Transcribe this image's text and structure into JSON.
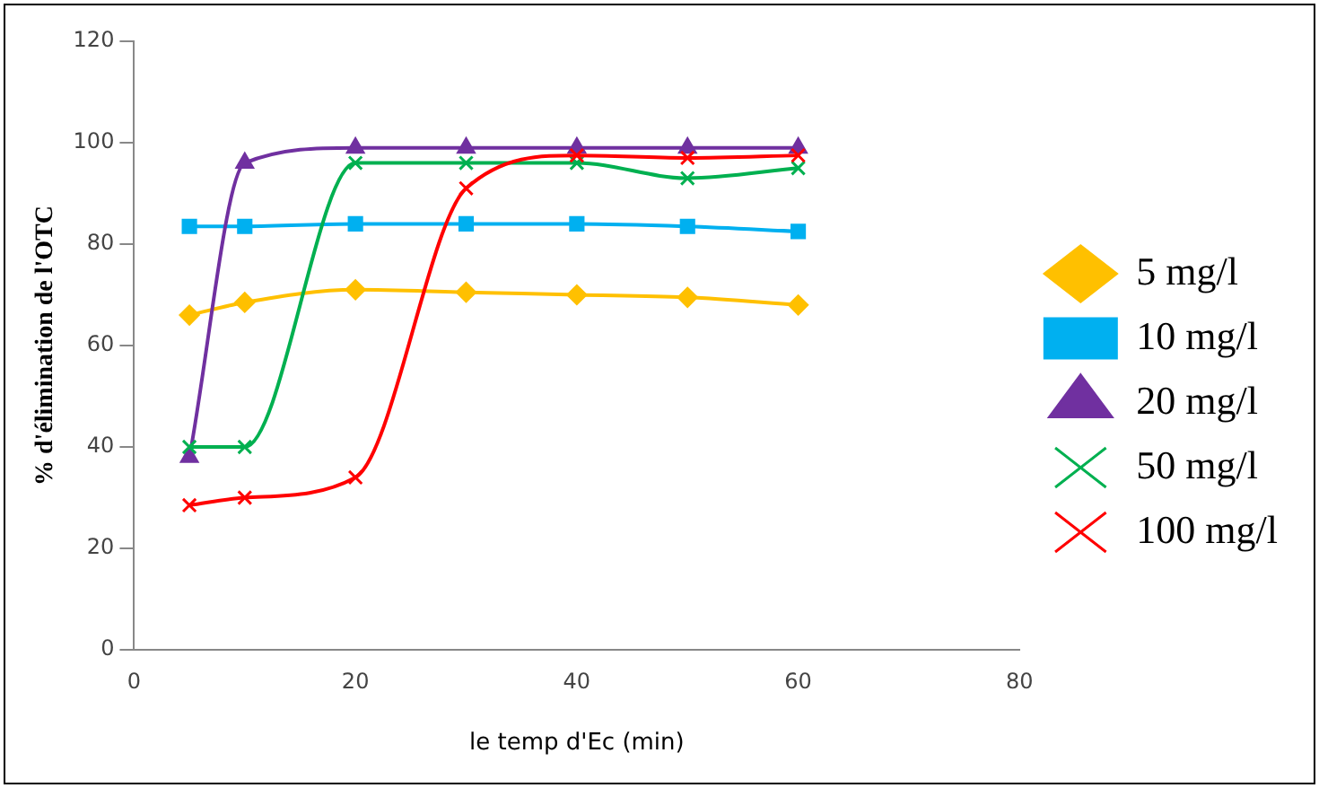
{
  "chart_data": {
    "type": "line",
    "xlabel": "le temp d'Ec (min)",
    "ylabel": "% d'élimination de l'OTC",
    "x": [
      5,
      10,
      20,
      30,
      40,
      50,
      60
    ],
    "series": [
      {
        "name": "5 mg/l",
        "color": "#ffc000",
        "marker": "diamond",
        "values": [
          66,
          68.5,
          71,
          70.5,
          70,
          69.5,
          68
        ]
      },
      {
        "name": "10 mg/l",
        "color": "#00b0f0",
        "marker": "square",
        "values": [
          83.5,
          83.5,
          84,
          84,
          84,
          83.5,
          82.5
        ]
      },
      {
        "name": "20 mg/l",
        "color": "#7030a0",
        "marker": "triangle",
        "values": [
          38,
          96,
          99,
          99,
          99,
          99,
          99
        ]
      },
      {
        "name": "50 mg/l",
        "color": "#00b050",
        "marker": "cross",
        "values": [
          40,
          40,
          96,
          96,
          96,
          93,
          95
        ]
      },
      {
        "name": "100 mg/l",
        "color": "#ff0000",
        "marker": "cross",
        "values": [
          28.5,
          30,
          34,
          91,
          97.5,
          97,
          97.5
        ]
      }
    ],
    "xlim": [
      0,
      80
    ],
    "xticks": [
      0,
      20,
      40,
      60,
      80
    ],
    "ylim": [
      0,
      120
    ],
    "yticks": [
      0,
      20,
      40,
      60,
      80,
      100,
      120
    ],
    "grid": false,
    "legend": "right"
  }
}
